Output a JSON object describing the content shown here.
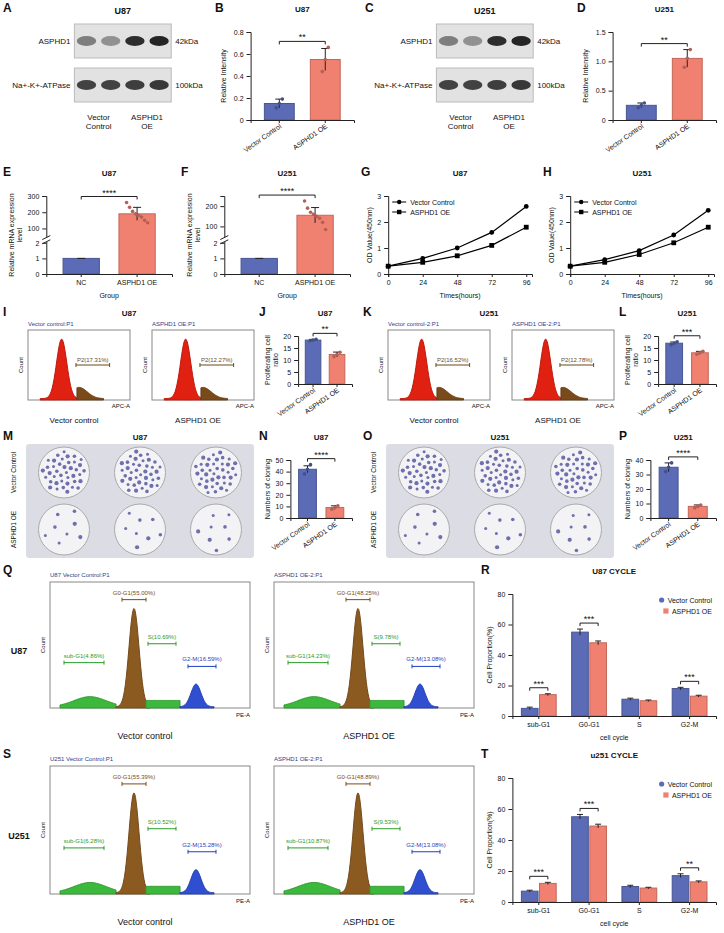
{
  "chart_data": [
    {
      "panel": "B",
      "type": "bar",
      "title": "U87",
      "categories": [
        "Vector Control",
        "ASPHD1 OE"
      ],
      "values": [
        0.15,
        0.55
      ],
      "errors": [
        0.04,
        0.1
      ],
      "points": [
        [
          0.11,
          0.15,
          0.19
        ],
        [
          0.44,
          0.55,
          0.66
        ]
      ],
      "colors": [
        "#5b6bb5",
        "#f08070"
      ],
      "y_label": "Relative Intensity",
      "ylim": [
        0,
        0.8
      ],
      "yticks": [
        0,
        0.2,
        0.4,
        0.6,
        0.8
      ],
      "significance": "**"
    },
    {
      "panel": "D",
      "type": "bar",
      "title": "U251",
      "categories": [
        "Vector Control",
        "ASPHD1 OE"
      ],
      "values": [
        0.25,
        1.05
      ],
      "errors": [
        0.04,
        0.15
      ],
      "points": [
        [
          0.21,
          0.25,
          0.29
        ],
        [
          0.9,
          1.05,
          1.2
        ]
      ],
      "colors": [
        "#5b6bb5",
        "#f08070"
      ],
      "y_label": "Relative Intensity",
      "ylim": [
        0,
        1.5
      ],
      "yticks": [
        0,
        0.5,
        {
          "value": 1,
          "label": "1.0"
        },
        1.5
      ],
      "significance": "**"
    },
    {
      "panel": "E",
      "type": "bar",
      "title": "U87",
      "categories": [
        "NC",
        "ASPHD1 OE"
      ],
      "values": [
        1,
        190
      ],
      "errors": [
        0,
        40
      ],
      "points": [
        [],
        [
          260,
          230,
          205,
          190,
          180,
          170,
          150,
          135
        ]
      ],
      "colors": [
        "#5b6bb5",
        "#f08070"
      ],
      "x_label": "Group",
      "y_label": "Relative mRNA expression level",
      "ylim": [
        0,
        300
      ],
      "ybreak": [
        2,
        50
      ],
      "yticks": [
        0,
        1,
        2,
        100,
        200,
        300
      ],
      "significance": "****"
    },
    {
      "panel": "F",
      "type": "bar",
      "title": "U251",
      "categories": [
        "NC",
        "ASPHD1 OE"
      ],
      "values": [
        1,
        155
      ],
      "errors": [
        0,
        38
      ],
      "points": [
        [],
        [
          225,
          190,
          170,
          160,
          150,
          140,
          120,
          85
        ]
      ],
      "colors": [
        "#5b6bb5",
        "#f08070"
      ],
      "x_label": "Group",
      "y_label": "Relative mRNA expression level",
      "ylim": [
        0,
        250
      ],
      "ybreak": [
        2,
        50
      ],
      "yticks": [
        0,
        1,
        2,
        100,
        200
      ],
      "significance": "****"
    },
    {
      "panel": "G",
      "type": "line",
      "title": "U87",
      "x": [
        0,
        24,
        48,
        72,
        96
      ],
      "xlim": [
        0,
        100
      ],
      "xticks": [
        0,
        24,
        48,
        72,
        96
      ],
      "ylim": [
        0,
        3
      ],
      "yticks": [
        0,
        1,
        2,
        3
      ],
      "x_label": "Times(hours)",
      "y_label": "OD Value(450nm)",
      "legend": "top-left",
      "series": [
        {
          "name": "Vector Control",
          "color": "#000000",
          "marker": "circle",
          "values": [
            0.3,
            0.6,
            1.0,
            1.6,
            2.6
          ]
        },
        {
          "name": "ASPHD1 OE",
          "color": "#000000",
          "marker": "square",
          "values": [
            0.3,
            0.45,
            0.7,
            1.1,
            1.8
          ]
        }
      ]
    },
    {
      "panel": "H",
      "type": "line",
      "title": "U251",
      "x": [
        0,
        24,
        48,
        72,
        96
      ],
      "xlim": [
        0,
        100
      ],
      "xticks": [
        0,
        24,
        48,
        72,
        96
      ],
      "ylim": [
        0,
        3
      ],
      "yticks": [
        0,
        1,
        2,
        3
      ],
      "x_label": "Times(hours)",
      "y_label": "OD Value(450nm)",
      "legend": "top-left",
      "series": [
        {
          "name": "Vector Control",
          "color": "#000000",
          "marker": "circle",
          "values": [
            0.3,
            0.55,
            0.9,
            1.5,
            2.45
          ]
        },
        {
          "name": "ASPHD1 OE",
          "color": "#000000",
          "marker": "square",
          "values": [
            0.3,
            0.45,
            0.75,
            1.2,
            1.8
          ]
        }
      ]
    },
    {
      "panel": "J",
      "type": "bar",
      "title": "U87",
      "categories": [
        "Vector Control",
        "ASPHD1 OE"
      ],
      "values": [
        18.3,
        12.3
      ],
      "errors": [
        0.3,
        1
      ],
      "points": [
        [
          18,
          18.3,
          18.6
        ],
        [
          11.4,
          12.3,
          13.2
        ]
      ],
      "colors": [
        "#5b6bb5",
        "#f08070"
      ],
      "y_label": "Proliferating cell ratio",
      "ylim": [
        0,
        20
      ],
      "yticks": [
        0,
        5,
        10,
        15,
        20
      ],
      "significance": "**"
    },
    {
      "panel": "L",
      "type": "bar",
      "title": "U251",
      "categories": [
        "Vector Control",
        "ASPHD1 OE"
      ],
      "values": [
        17,
        13
      ],
      "errors": [
        0.5,
        0.6
      ],
      "points": [
        [
          16.4,
          17,
          17.6
        ],
        [
          12.4,
          13,
          13.6
        ]
      ],
      "colors": [
        "#5b6bb5",
        "#f08070"
      ],
      "y_label": "Proliferating cell ratio",
      "ylim": [
        0,
        20
      ],
      "yticks": [
        0,
        5,
        10,
        15,
        20
      ],
      "significance": "***"
    },
    {
      "panel": "N",
      "type": "bar",
      "title": "U87",
      "categories": [
        "Vector Control",
        "ASPHD1 OE"
      ],
      "values": [
        42,
        9
      ],
      "errors": [
        3,
        1.5
      ],
      "points": [
        [
          38,
          42,
          46
        ],
        [
          7.5,
          9,
          10.5
        ]
      ],
      "colors": [
        "#5b6bb5",
        "#f08070"
      ],
      "y_label": "Numbers of cloning",
      "ylim": [
        0,
        50
      ],
      "yticks": [
        0,
        10,
        20,
        30,
        40,
        50
      ],
      "significance": "****"
    },
    {
      "panel": "P",
      "type": "bar",
      "title": "U251",
      "categories": [
        "Vector Control",
        "ASPHD1 OE"
      ],
      "values": [
        35,
        8
      ],
      "errors": [
        3,
        1
      ],
      "points": [
        [
          32,
          35,
          38
        ],
        [
          7,
          8,
          9
        ]
      ],
      "colors": [
        "#5b6bb5",
        "#f08070"
      ],
      "y_label": "Numbers of cloning",
      "ylim": [
        0,
        40
      ],
      "yticks": [
        0,
        10,
        20,
        30,
        40
      ],
      "significance": "****"
    },
    {
      "panel": "R",
      "type": "bar",
      "title": "U87 CYCLE",
      "categories": [
        "sub-G1",
        "G0-G1",
        "S",
        "G2-M"
      ],
      "x_label": "cell cycle",
      "y_label": "Cell Proportion(%)",
      "ylim": [
        0,
        80
      ],
      "yticks": [
        0,
        20,
        40,
        60,
        80
      ],
      "legend": "top-right",
      "significance": [
        "***",
        "***",
        null,
        "***"
      ],
      "series": [
        {
          "name": "Vector Control",
          "color": "#5b6bb5",
          "marker": "circle",
          "values": [
            5,
            55,
            11,
            18
          ],
          "errors": [
            0.8,
            2,
            0.7,
            0.8
          ]
        },
        {
          "name": "ASPHD1 OE",
          "color": "#f08070",
          "marker": "square",
          "values": [
            14,
            48,
            10,
            13
          ],
          "errors": [
            0.6,
            1.2,
            0.5,
            0.6
          ]
        }
      ]
    },
    {
      "panel": "T",
      "type": "bar",
      "title": "u251 CYCLE",
      "categories": [
        "sub-G1",
        "G0-G1",
        "S",
        "G2-M"
      ],
      "x_label": "cell cycle",
      "y_label": "Cell Proportion(%)",
      "ylim": [
        0,
        80
      ],
      "yticks": [
        0,
        20,
        40,
        60,
        80
      ],
      "legend": "top-right",
      "significance": [
        "***",
        "***",
        null,
        "**"
      ],
      "series": [
        {
          "name": "Vector Control",
          "color": "#5b6bb5",
          "marker": "circle",
          "values": [
            7,
            55,
            10,
            17
          ],
          "errors": [
            0.6,
            1.5,
            0.8,
            1.2
          ]
        },
        {
          "name": "ASPHD1 OE",
          "color": "#f08070",
          "marker": "square",
          "values": [
            12,
            49,
            9,
            13
          ],
          "errors": [
            0.7,
            1.2,
            0.5,
            0.6
          ]
        }
      ]
    }
  ],
  "blots": [
    {
      "panel": "A",
      "title": "U87",
      "rows": [
        {
          "label": "ASPHD1",
          "size": "42kDa"
        },
        {
          "label": "Na+-K+-ATPase",
          "size": "100kDa"
        }
      ],
      "groups": [
        "Vector Control",
        "ASPHD1 OE"
      ]
    },
    {
      "panel": "C",
      "title": "U251",
      "rows": [
        {
          "label": "ASPHD1",
          "size": "42kDa"
        },
        {
          "label": "Na+-K+-ATPase",
          "size": "100kDa"
        }
      ],
      "groups": [
        "Vector Control",
        "ASPHD1 OE"
      ]
    }
  ],
  "flow_proliferation": [
    {
      "panel": "I",
      "title": "U87",
      "x_label": "APC-A",
      "y_label": "Count",
      "plots": [
        {
          "header": "Vector control:P1",
          "gate": "P2(17.31%)",
          "caption": "Vector control"
        },
        {
          "header": "ASPHD1 OE:P1",
          "gate": "P2(12.27%)",
          "caption": "ASPHD1 OE"
        }
      ]
    },
    {
      "panel": "K",
      "title": "U251",
      "x_label": "APC-A",
      "y_label": "Count",
      "plots": [
        {
          "header": "Vector control-2:P1",
          "gate": "P2(16.52%)",
          "caption": "Vector control"
        },
        {
          "header": "ASPHD1 OE-2:P1",
          "gate": "P2(12.78%)",
          "caption": "ASPHD1 OE"
        }
      ]
    }
  ],
  "colonies": [
    {
      "panel": "M",
      "title": "U87",
      "rows": [
        "Vector Control",
        "ASPHD1 OE"
      ]
    },
    {
      "panel": "O",
      "title": "U251",
      "rows": [
        "Vector Control",
        "ASPHD1 OE"
      ]
    }
  ],
  "flow_cycle": [
    {
      "panel": "Q",
      "cell": "U87",
      "x_label": "PE-A",
      "y_label": "Count",
      "plots": [
        {
          "header": "U87 Vector Control:P1",
          "gates": [
            "sub-G1(4.86%)",
            "G0-G1(55.00%)",
            "S(10.69%)",
            "G2-M(16.59%)"
          ],
          "caption": "Vector control"
        },
        {
          "header": "ASPHD1 OE-2:P1",
          "gates": [
            "sub-G1(14.23%)",
            "G0-G1(48.25%)",
            "S(9.78%)",
            "G2-M(13.08%)"
          ],
          "caption": "ASPHD1 OE"
        }
      ]
    },
    {
      "panel": "S",
      "cell": "U251",
      "x_label": "PE-A",
      "y_label": "Count",
      "plots": [
        {
          "header": "U251 Vector Control:P1",
          "gates": [
            "sub-G1(6.28%)",
            "G0-G1(55.39%)",
            "S(10.52%)",
            "G2-M(15.28%)"
          ],
          "caption": "Vector control"
        },
        {
          "header": "ASPHD1 OE-2:P1",
          "gates": [
            "sub-G1(10.87%)",
            "G0-G1(48.89%)",
            "S(9.53%)",
            "G2-M(13.08%)"
          ],
          "caption": "ASPHD1 OE"
        }
      ]
    }
  ]
}
